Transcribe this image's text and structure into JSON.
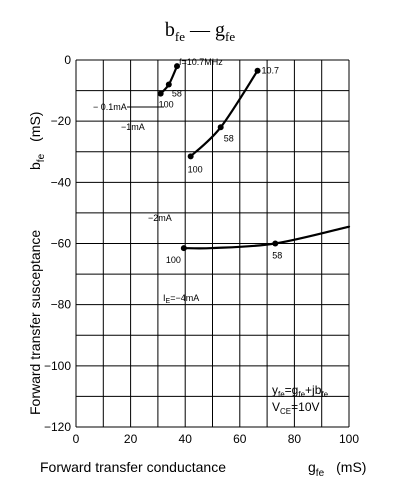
{
  "chart_data": {
    "type": "line",
    "title": "b",
    "title_sub": "fe",
    "title_sep": " — g",
    "title_sub2": "fe",
    "xlabel": "Forward transfer conductance",
    "xlabel_sym": "g",
    "xlabel_sub": "fe",
    "xlabel_unit": "(mS)",
    "ylabel": "Forward transfer susceptance",
    "ylabel_sym": "b",
    "ylabel_sub": "fe",
    "ylabel_unit": "(mS)",
    "xlim": [
      0,
      100
    ],
    "ylim": [
      -120,
      0
    ],
    "x_ticks": [
      0,
      20,
      40,
      60,
      80,
      100
    ],
    "y_ticks": [
      0,
      -20,
      -40,
      -60,
      -80,
      -100,
      -120
    ],
    "grid": true,
    "series": [
      {
        "name": "−1mA",
        "points": [
          [
            31,
            -11
          ],
          [
            34,
            -8
          ],
          [
            37,
            -2
          ]
        ]
      },
      {
        "name": "−2mA",
        "points": [
          [
            42,
            -31.5
          ],
          [
            53,
            -22
          ],
          [
            66.5,
            -3.5
          ]
        ]
      },
      {
        "name": "IE=−4mA",
        "points": [
          [
            39.5,
            -61.5
          ],
          [
            50,
            -61.5
          ],
          [
            73,
            -60
          ],
          [
            100,
            -54.5
          ]
        ]
      }
    ],
    "point_labels": [
      {
        "text": "100",
        "x": 31,
        "y": -11
      },
      {
        "text": "58",
        "x": 34,
        "y": -8
      },
      {
        "text": "f=10.7MHz",
        "x": 37,
        "y": -2
      },
      {
        "text": "100",
        "x": 42,
        "y": -31.5
      },
      {
        "text": "58",
        "x": 53,
        "y": -22
      },
      {
        "text": "10.7",
        "x": 66.5,
        "y": -3.5
      },
      {
        "text": "100",
        "x": 39.5,
        "y": -61.5
      },
      {
        "text": "58",
        "x": 73,
        "y": -60
      }
    ],
    "curve_labels": [
      {
        "text": "− 0.1mA"
      },
      {
        "text": "−1mA"
      },
      {
        "text": "−2mA"
      },
      {
        "text": "I",
        "sub": "E",
        "rest": "=−4mA"
      }
    ],
    "annotation": {
      "line1": {
        "a": "y",
        "a_sub": "fe",
        "b": "=g",
        "b_sub": "fe",
        "c": "+jb",
        "c_sub": "fe"
      },
      "line2": {
        "a": "V",
        "a_sub": "CE",
        "b": "=10V"
      }
    }
  }
}
